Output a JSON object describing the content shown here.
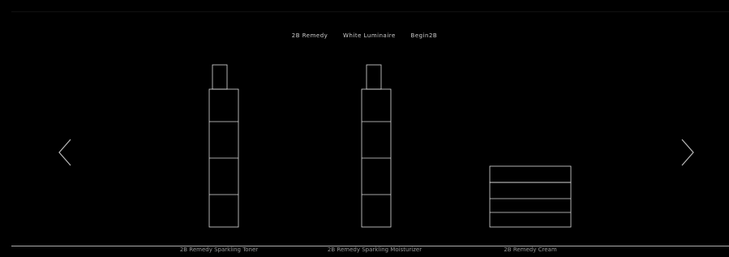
{
  "tabs": [
    "2B Remedy",
    "White Luminaire",
    "Begin2B"
  ],
  "products": [
    {
      "name": "2B Remedy Sparkling Toner"
    },
    {
      "name": "2B Remedy Sparkling Moisturizer"
    },
    {
      "name": "2B Remedy Cream"
    }
  ]
}
